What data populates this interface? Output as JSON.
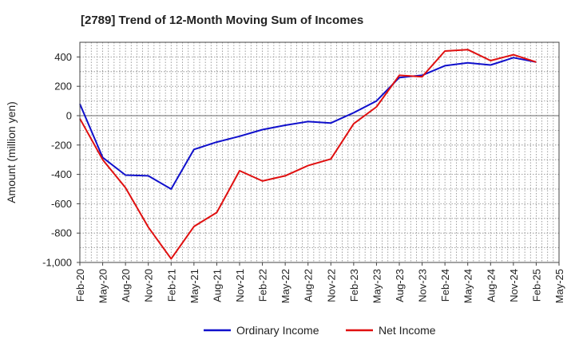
{
  "chart_data": {
    "type": "line",
    "title": "[2789]  Trend of 12-Month Moving Sum of Incomes",
    "xlabel": "",
    "ylabel": "Amount (million yen)",
    "ylim": [
      -1000,
      500
    ],
    "yticks": [
      -1000,
      -800,
      -600,
      -400,
      -200,
      0,
      200,
      400
    ],
    "ytick_labels": [
      "-1,000",
      "-800",
      "-600",
      "-400",
      "-200",
      "0",
      "200",
      "400"
    ],
    "grid": true,
    "legend_position": "bottom-center",
    "categories": [
      "Feb-20",
      "May-20",
      "Aug-20",
      "Nov-20",
      "Feb-21",
      "May-21",
      "Aug-21",
      "Nov-21",
      "Feb-22",
      "May-22",
      "Aug-22",
      "Nov-22",
      "Feb-23",
      "May-23",
      "Aug-23",
      "Nov-23",
      "Feb-24",
      "May-24",
      "Aug-24",
      "Nov-24",
      "Feb-25",
      "May-25"
    ],
    "series": [
      {
        "name": "Ordinary Income",
        "color": "#1010cc",
        "values": [
          80,
          -285,
          -405,
          -410,
          -500,
          -230,
          -180,
          -140,
          -95,
          -65,
          -40,
          -50,
          20,
          100,
          260,
          275,
          340,
          360,
          345,
          395,
          365,
          null
        ]
      },
      {
        "name": "Net Income",
        "color": "#e01010",
        "values": [
          -20,
          -300,
          -490,
          -760,
          -975,
          -755,
          -660,
          -375,
          -445,
          -410,
          -340,
          -295,
          -55,
          60,
          275,
          265,
          440,
          450,
          375,
          415,
          365,
          null
        ]
      }
    ]
  }
}
